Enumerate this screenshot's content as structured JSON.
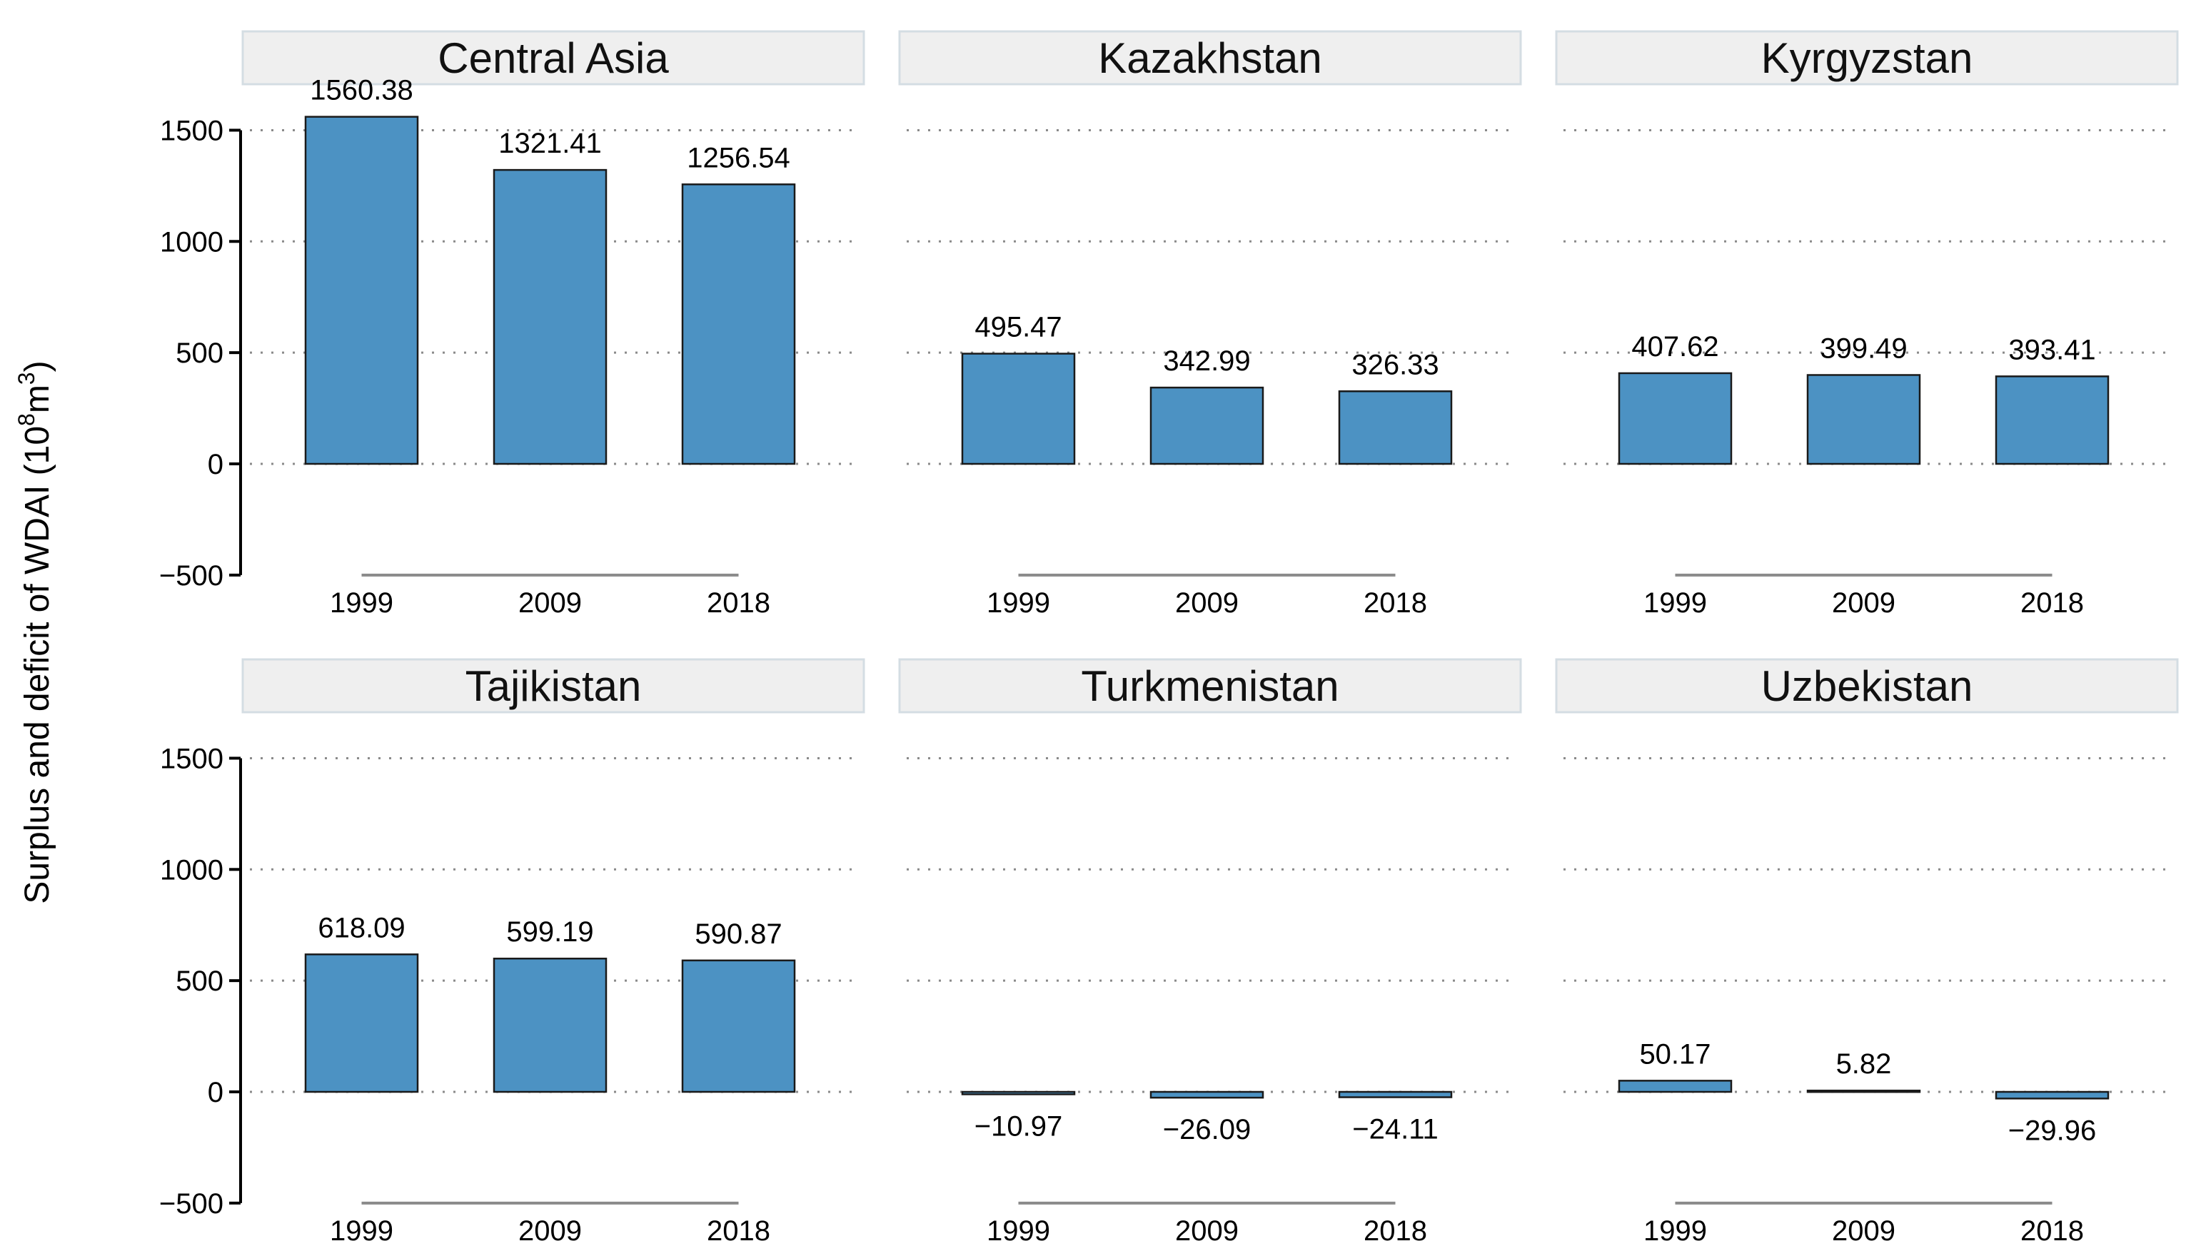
{
  "chart_data": {
    "type": "bar",
    "ylabel": "Surplus and deficit of WDAI (10",
    "ylabel_exp1": "8",
    "ylabel_mid": "m",
    "ylabel_exp2": "3",
    "ylabel_end": ")",
    "ylim": [
      -500,
      1500
    ],
    "yticks": [
      -500,
      0,
      500,
      1000,
      1500
    ],
    "ytick_labels": [
      "−500",
      "0",
      "500",
      "1000",
      "1500"
    ],
    "categories": [
      "1999",
      "2009",
      "2018"
    ],
    "bar_color": "#4c92c3",
    "grid": "horizontal dotted",
    "layout": "facet 2 rows x 3 columns",
    "panels": [
      {
        "name": "Central Asia",
        "values": [
          1560.38,
          1321.41,
          1256.54
        ],
        "labels": [
          "1560.38",
          "1321.41",
          "1256.54"
        ]
      },
      {
        "name": "Kazakhstan",
        "values": [
          495.47,
          342.99,
          326.33
        ],
        "labels": [
          "495.47",
          "342.99",
          "326.33"
        ]
      },
      {
        "name": "Kyrgyzstan",
        "values": [
          407.62,
          399.49,
          393.41
        ],
        "labels": [
          "407.62",
          "399.49",
          "393.41"
        ]
      },
      {
        "name": "Tajikistan",
        "values": [
          618.09,
          599.19,
          590.87
        ],
        "labels": [
          "618.09",
          "599.19",
          "590.87"
        ]
      },
      {
        "name": "Turkmenistan",
        "values": [
          -10.97,
          -26.09,
          -24.11
        ],
        "labels": [
          "−10.97",
          "−26.09",
          "−24.11"
        ]
      },
      {
        "name": "Uzbekistan",
        "values": [
          50.17,
          5.82,
          -29.96
        ],
        "labels": [
          "50.17",
          "5.82",
          "−29.96"
        ]
      }
    ]
  }
}
